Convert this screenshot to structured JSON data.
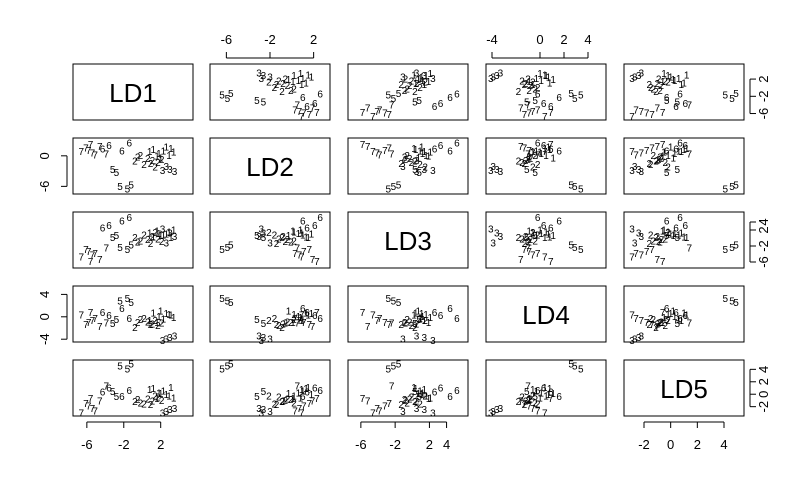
{
  "chart_data": {
    "type": "scatter",
    "title": "",
    "variables": [
      "LD1",
      "LD2",
      "LD3",
      "LD4",
      "LD5"
    ],
    "axes": {
      "LD1": {
        "lim": [
          -7.5,
          5.5
        ],
        "ticks": [
          "-6",
          "-2",
          "2"
        ]
      },
      "LD2": {
        "lim": [
          -7.5,
          3.5
        ],
        "ticks": [
          "-6",
          "0"
        ]
      },
      "LD3": {
        "lim": [
          -7.5,
          6.5
        ],
        "ticks": [
          "-6",
          "-2",
          "2",
          "4"
        ]
      },
      "LD4": {
        "lim": [
          -4.5,
          5.5
        ],
        "ticks": [
          "-4",
          "0",
          "4"
        ]
      },
      "LD5": {
        "lim": [
          -3.5,
          5.5
        ],
        "ticks": [
          "-2",
          "0",
          "2",
          "4"
        ]
      }
    },
    "tick_values": {
      "LD1": [
        -6,
        -2,
        2
      ],
      "LD2": [
        -6,
        0
      ],
      "LD3": [
        -6,
        -2,
        2,
        4
      ],
      "LD4": [
        -4,
        0,
        4
      ],
      "LD5": [
        -2,
        0,
        2,
        4
      ]
    },
    "top_axis_ticks": {
      "LD2": [
        "-6",
        "-2",
        "2"
      ],
      "LD4": [
        "-4",
        "0",
        "2",
        "4"
      ]
    },
    "top_axis_values": {
      "LD2": [
        -6,
        -2,
        2
      ],
      "LD4": [
        -4,
        0,
        2,
        4
      ]
    },
    "groups": [
      "1",
      "2",
      "3",
      "5",
      "6",
      "7"
    ],
    "points": [
      {
        "g": "1",
        "v": [
          1.8,
          0.6,
          1.2,
          0.1,
          0.3
        ]
      },
      {
        "g": "1",
        "v": [
          2.3,
          1.0,
          0.9,
          -0.3,
          0.6
        ]
      },
      {
        "g": "1",
        "v": [
          2.9,
          0.2,
          1.6,
          0.5,
          -0.2
        ]
      },
      {
        "g": "1",
        "v": [
          1.2,
          1.3,
          0.4,
          0.8,
          1.0
        ]
      },
      {
        "g": "1",
        "v": [
          3.4,
          0.8,
          2.1,
          0.0,
          -0.5
        ]
      },
      {
        "g": "1",
        "v": [
          2.0,
          -0.3,
          0.7,
          1.1,
          0.2
        ]
      },
      {
        "g": "1",
        "v": [
          0.8,
          0.9,
          1.4,
          -0.6,
          0.8
        ]
      },
      {
        "g": "1",
        "v": [
          3.1,
          1.5,
          0.2,
          0.4,
          1.2
        ]
      },
      {
        "g": "1",
        "v": [
          1.6,
          0.1,
          1.9,
          -0.9,
          -0.6
        ]
      },
      {
        "g": "1",
        "v": [
          2.6,
          1.8,
          1.1,
          0.7,
          0.0
        ]
      },
      {
        "g": "2",
        "v": [
          0.6,
          -0.4,
          -0.3,
          -0.8,
          -0.7
        ]
      },
      {
        "g": "2",
        "v": [
          1.1,
          -0.8,
          0.5,
          -1.2,
          -1.0
        ]
      },
      {
        "g": "2",
        "v": [
          -0.2,
          0.2,
          -0.6,
          -0.4,
          -1.3
        ]
      },
      {
        "g": "2",
        "v": [
          1.7,
          -1.2,
          -0.1,
          -1.5,
          -0.4
        ]
      },
      {
        "g": "2",
        "v": [
          0.2,
          -1.6,
          0.9,
          -0.2,
          -1.5
        ]
      },
      {
        "g": "2",
        "v": [
          2.1,
          -0.6,
          -0.8,
          -1.0,
          -0.9
        ]
      },
      {
        "g": "2",
        "v": [
          -0.8,
          -0.9,
          0.3,
          -1.8,
          -1.1
        ]
      },
      {
        "g": "2",
        "v": [
          1.4,
          -2.1,
          1.5,
          -0.6,
          -0.2
        ]
      },
      {
        "g": "2",
        "v": [
          0.9,
          -1.4,
          -1.3,
          -1.3,
          -1.6
        ]
      },
      {
        "g": "2",
        "v": [
          -0.5,
          -0.1,
          -0.9,
          -0.9,
          -0.8
        ]
      },
      {
        "g": "3",
        "v": [
          3.0,
          -2.6,
          1.4,
          -3.6,
          -2.4
        ]
      },
      {
        "g": "3",
        "v": [
          2.6,
          -2.0,
          -1.1,
          -3.9,
          -2.7
        ]
      },
      {
        "g": "3",
        "v": [
          3.5,
          -3.0,
          0.5,
          -3.3,
          -2.2
        ]
      },
      {
        "g": "3",
        "v": [
          2.2,
          -2.8,
          2.4,
          -4.1,
          -2.9
        ]
      },
      {
        "g": "5",
        "v": [
          -2.4,
          -5.9,
          -2.2,
          2.9,
          4.6
        ]
      },
      {
        "g": "5",
        "v": [
          -1.6,
          -6.4,
          -2.8,
          3.4,
          4.1
        ]
      },
      {
        "g": "5",
        "v": [
          -1.2,
          -5.6,
          -1.6,
          2.6,
          4.9
        ]
      },
      {
        "g": "5",
        "v": [
          -2.8,
          -3.2,
          0.8,
          -0.4,
          -0.3
        ]
      },
      {
        "g": "5",
        "v": [
          -3.2,
          -2.6,
          0.3,
          -1.1,
          0.5
        ]
      },
      {
        "g": "6",
        "v": [
          -4.3,
          1.4,
          2.6,
          0.9,
          0.4
        ]
      },
      {
        "g": "6",
        "v": [
          -3.6,
          2.1,
          3.3,
          0.3,
          1.1
        ]
      },
      {
        "g": "6",
        "v": [
          -2.2,
          1.0,
          4.4,
          1.6,
          -0.3
        ]
      },
      {
        "g": "6",
        "v": [
          -1.4,
          2.6,
          5.2,
          -0.2,
          0.7
        ]
      },
      {
        "g": "7",
        "v": [
          -5.8,
          1.1,
          -3.2,
          -0.9,
          -1.8
        ]
      },
      {
        "g": "7",
        "v": [
          -5.4,
          0.7,
          -4.1,
          -0.6,
          -2.2
        ]
      },
      {
        "g": "7",
        "v": [
          -6.1,
          1.6,
          -2.7,
          -1.3,
          -1.4
        ]
      },
      {
        "g": "7",
        "v": [
          -5.1,
          0.3,
          -3.8,
          -0.2,
          -2.6
        ]
      },
      {
        "g": "7",
        "v": [
          -4.6,
          1.9,
          -5.2,
          -1.6,
          -1.0
        ]
      },
      {
        "g": "7",
        "v": [
          -6.6,
          0.9,
          -4.6,
          0.4,
          -2.9
        ]
      },
      {
        "g": "7",
        "v": [
          -3.9,
          0.5,
          -2.4,
          -1.0,
          1.4
        ]
      },
      {
        "g": "7",
        "v": [
          -5.6,
          2.3,
          -5.8,
          0.9,
          -0.6
        ]
      }
    ]
  }
}
